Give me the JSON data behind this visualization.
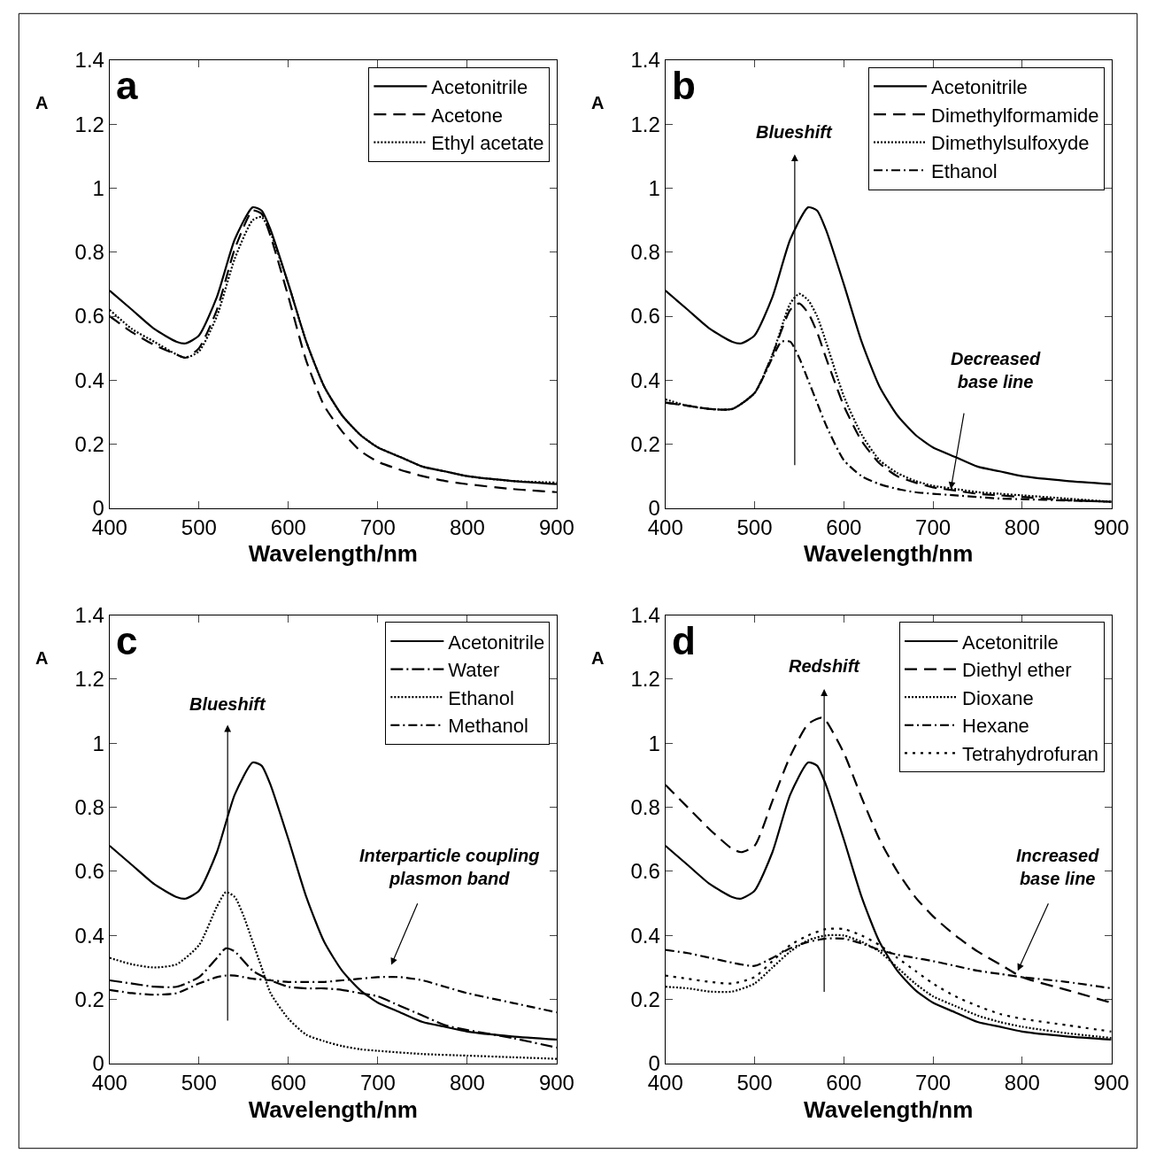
{
  "chart_data": [
    {
      "type": "line",
      "title": "a",
      "xlabel": "Wavelength/nm",
      "ylabel": "A",
      "xlim": [
        400,
        900
      ],
      "ylim": [
        0,
        1.4
      ],
      "xticks": [
        400,
        500,
        600,
        700,
        800,
        900
      ],
      "yticks": [
        0,
        0.2,
        0.4,
        0.6,
        0.8,
        1,
        1.2,
        1.4
      ],
      "legend": "top right",
      "series": [
        {
          "name": "Acetonitrile",
          "color": "#000000",
          "line_style": "solid",
          "x": [
            400,
            425,
            450,
            475,
            485,
            500,
            520,
            540,
            560,
            570,
            580,
            600,
            620,
            640,
            660,
            680,
            700,
            725,
            750,
            775,
            800,
            850,
            900
          ],
          "values": [
            0.68,
            0.62,
            0.56,
            0.52,
            0.515,
            0.54,
            0.66,
            0.84,
            0.94,
            0.93,
            0.87,
            0.7,
            0.52,
            0.38,
            0.29,
            0.23,
            0.19,
            0.16,
            0.13,
            0.115,
            0.1,
            0.085,
            0.075
          ]
        },
        {
          "name": "Acetone",
          "color": "#000000",
          "line_style": "dashed",
          "x": [
            400,
            425,
            450,
            475,
            485,
            500,
            520,
            540,
            560,
            570,
            580,
            600,
            620,
            640,
            660,
            680,
            700,
            725,
            750,
            775,
            800,
            850,
            900
          ],
          "values": [
            0.6,
            0.55,
            0.51,
            0.48,
            0.47,
            0.5,
            0.62,
            0.81,
            0.93,
            0.92,
            0.85,
            0.66,
            0.46,
            0.32,
            0.24,
            0.18,
            0.145,
            0.12,
            0.1,
            0.085,
            0.075,
            0.06,
            0.05
          ]
        },
        {
          "name": "Ethyl acetate",
          "color": "#000000",
          "line_style": "dotted",
          "x": [
            400,
            425,
            450,
            475,
            485,
            500,
            520,
            540,
            560,
            570,
            580,
            600,
            620,
            640,
            660,
            680,
            700,
            725,
            750,
            775,
            800,
            850,
            900
          ],
          "values": [
            0.62,
            0.56,
            0.52,
            0.48,
            0.47,
            0.49,
            0.6,
            0.78,
            0.9,
            0.91,
            0.86,
            0.7,
            0.52,
            0.38,
            0.29,
            0.23,
            0.19,
            0.16,
            0.13,
            0.115,
            0.1,
            0.085,
            0.08
          ]
        }
      ]
    },
    {
      "type": "line",
      "title": "b",
      "xlabel": "Wavelength/nm",
      "ylabel": "A",
      "xlim": [
        400,
        900
      ],
      "ylim": [
        0,
        1.4
      ],
      "xticks": [
        400,
        500,
        600,
        700,
        800,
        900
      ],
      "yticks": [
        0,
        0.2,
        0.4,
        0.6,
        0.8,
        1,
        1.2,
        1.4
      ],
      "legend": "top right",
      "annotations": [
        "Blueshift",
        {
          "text": "Decreased\nbase line",
          "x": 720,
          "y": 0.06
        }
      ],
      "series": [
        {
          "name": "Acetonitrile",
          "color": "#000000",
          "line_style": "solid",
          "x": [
            400,
            425,
            450,
            475,
            485,
            500,
            520,
            540,
            560,
            570,
            580,
            600,
            620,
            640,
            660,
            680,
            700,
            725,
            750,
            775,
            800,
            850,
            900
          ],
          "values": [
            0.68,
            0.62,
            0.56,
            0.52,
            0.515,
            0.54,
            0.66,
            0.84,
            0.94,
            0.93,
            0.87,
            0.7,
            0.52,
            0.38,
            0.29,
            0.23,
            0.19,
            0.16,
            0.13,
            0.115,
            0.1,
            0.085,
            0.075
          ]
        },
        {
          "name": "Dimethylformamide",
          "color": "#000000",
          "line_style": "dashed",
          "x": [
            400,
            425,
            450,
            475,
            500,
            520,
            540,
            550,
            560,
            570,
            580,
            600,
            620,
            640,
            660,
            680,
            700,
            725,
            750,
            775,
            800,
            850,
            900
          ],
          "values": [
            0.33,
            0.32,
            0.31,
            0.31,
            0.36,
            0.48,
            0.62,
            0.64,
            0.61,
            0.55,
            0.47,
            0.32,
            0.21,
            0.14,
            0.1,
            0.08,
            0.065,
            0.055,
            0.045,
            0.04,
            0.035,
            0.025,
            0.02
          ]
        },
        {
          "name": "Dimethylsulfoxyde",
          "color": "#000000",
          "line_style": "dotted",
          "x": [
            400,
            425,
            450,
            475,
            500,
            520,
            540,
            550,
            560,
            570,
            580,
            600,
            620,
            640,
            660,
            680,
            700,
            725,
            750,
            775,
            800,
            850,
            900
          ],
          "values": [
            0.34,
            0.32,
            0.31,
            0.31,
            0.36,
            0.48,
            0.64,
            0.67,
            0.65,
            0.6,
            0.52,
            0.35,
            0.23,
            0.15,
            0.11,
            0.085,
            0.07,
            0.06,
            0.05,
            0.045,
            0.04,
            0.03,
            0.02
          ]
        },
        {
          "name": "Ethanol",
          "color": "#000000",
          "line_style": "dashdot",
          "x": [
            400,
            425,
            450,
            475,
            500,
            520,
            530,
            540,
            550,
            560,
            570,
            580,
            600,
            620,
            640,
            660,
            680,
            700,
            725,
            750,
            775,
            800,
            850,
            900
          ],
          "values": [
            0.33,
            0.32,
            0.31,
            0.31,
            0.36,
            0.47,
            0.52,
            0.52,
            0.47,
            0.4,
            0.33,
            0.26,
            0.15,
            0.1,
            0.075,
            0.06,
            0.05,
            0.045,
            0.04,
            0.035,
            0.03,
            0.028,
            0.024,
            0.02
          ]
        }
      ]
    },
    {
      "type": "line",
      "title": "c",
      "xlabel": "Wavelength/nm",
      "ylabel": "A",
      "xlim": [
        400,
        900
      ],
      "ylim": [
        0,
        1.4
      ],
      "xticks": [
        400,
        500,
        600,
        700,
        800,
        900
      ],
      "yticks": [
        0,
        0.2,
        0.4,
        0.6,
        0.8,
        1,
        1.2,
        1.4
      ],
      "legend": "top right",
      "annotations": [
        "Blueshift",
        "Interparticle coupling\nplasmon band"
      ],
      "series": [
        {
          "name": "Acetonitrile",
          "color": "#000000",
          "line_style": "solid",
          "x": [
            400,
            425,
            450,
            475,
            485,
            500,
            520,
            540,
            560,
            570,
            580,
            600,
            620,
            640,
            660,
            680,
            700,
            725,
            750,
            775,
            800,
            850,
            900
          ],
          "values": [
            0.68,
            0.62,
            0.56,
            0.52,
            0.515,
            0.54,
            0.66,
            0.84,
            0.94,
            0.93,
            0.87,
            0.7,
            0.52,
            0.38,
            0.29,
            0.23,
            0.19,
            0.16,
            0.13,
            0.115,
            0.1,
            0.085,
            0.075
          ]
        },
        {
          "name": "Water",
          "color": "#000000",
          "line_style": "longdashdot",
          "x": [
            400,
            425,
            450,
            475,
            500,
            520,
            530,
            540,
            550,
            560,
            580,
            600,
            620,
            640,
            660,
            680,
            700,
            725,
            750,
            775,
            800,
            850,
            900
          ],
          "values": [
            0.26,
            0.25,
            0.24,
            0.24,
            0.27,
            0.33,
            0.36,
            0.35,
            0.32,
            0.29,
            0.26,
            0.24,
            0.235,
            0.235,
            0.23,
            0.22,
            0.21,
            0.18,
            0.15,
            0.12,
            0.105,
            0.08,
            0.05
          ]
        },
        {
          "name": "Ethanol",
          "color": "#000000",
          "line_style": "dotted",
          "x": [
            400,
            425,
            450,
            475,
            500,
            520,
            530,
            540,
            550,
            560,
            570,
            580,
            600,
            620,
            640,
            660,
            680,
            700,
            750,
            800,
            850,
            900
          ],
          "values": [
            0.33,
            0.31,
            0.3,
            0.31,
            0.37,
            0.49,
            0.535,
            0.52,
            0.46,
            0.38,
            0.3,
            0.22,
            0.14,
            0.09,
            0.07,
            0.055,
            0.045,
            0.04,
            0.03,
            0.025,
            0.02,
            0.015
          ]
        },
        {
          "name": "Methanol",
          "color": "#000000",
          "line_style": "dashdot",
          "x": [
            400,
            425,
            450,
            475,
            500,
            520,
            530,
            540,
            550,
            560,
            580,
            600,
            620,
            640,
            660,
            680,
            700,
            725,
            750,
            775,
            800,
            850,
            900
          ],
          "values": [
            0.23,
            0.22,
            0.215,
            0.22,
            0.25,
            0.27,
            0.275,
            0.275,
            0.27,
            0.265,
            0.26,
            0.255,
            0.255,
            0.255,
            0.26,
            0.265,
            0.27,
            0.27,
            0.26,
            0.24,
            0.22,
            0.19,
            0.16
          ]
        }
      ]
    },
    {
      "type": "line",
      "title": "d",
      "xlabel": "Wavelength/nm",
      "ylabel": "A",
      "xlim": [
        400,
        900
      ],
      "ylim": [
        0,
        1.4
      ],
      "xticks": [
        400,
        500,
        600,
        700,
        800,
        900
      ],
      "yticks": [
        0,
        0.2,
        0.4,
        0.6,
        0.8,
        1,
        1.2,
        1.4
      ],
      "legend": "top right",
      "annotations": [
        "Redshift",
        {
          "text": "Increased\nbase line",
          "x": 795,
          "y": 0.29
        }
      ],
      "series": [
        {
          "name": "Acetonitrile",
          "color": "#000000",
          "line_style": "solid",
          "x": [
            400,
            425,
            450,
            475,
            485,
            500,
            520,
            540,
            560,
            570,
            580,
            600,
            620,
            640,
            660,
            680,
            700,
            725,
            750,
            775,
            800,
            850,
            900
          ],
          "values": [
            0.68,
            0.62,
            0.56,
            0.52,
            0.515,
            0.54,
            0.66,
            0.84,
            0.94,
            0.93,
            0.87,
            0.7,
            0.52,
            0.38,
            0.29,
            0.23,
            0.19,
            0.16,
            0.13,
            0.115,
            0.1,
            0.085,
            0.075
          ]
        },
        {
          "name": "Diethyl ether",
          "color": "#000000",
          "line_style": "dashed",
          "x": [
            400,
            425,
            450,
            475,
            485,
            500,
            520,
            540,
            560,
            575,
            580,
            600,
            620,
            640,
            660,
            680,
            700,
            725,
            750,
            775,
            800,
            850,
            900
          ],
          "values": [
            0.87,
            0.8,
            0.73,
            0.67,
            0.66,
            0.68,
            0.82,
            0.96,
            1.06,
            1.08,
            1.07,
            0.97,
            0.83,
            0.7,
            0.6,
            0.52,
            0.46,
            0.4,
            0.35,
            0.31,
            0.27,
            0.23,
            0.19
          ]
        },
        {
          "name": "Dioxane",
          "color": "#000000",
          "line_style": "dotted",
          "x": [
            400,
            425,
            450,
            475,
            500,
            520,
            540,
            560,
            580,
            600,
            620,
            640,
            660,
            680,
            700,
            725,
            750,
            775,
            800,
            850,
            900
          ],
          "values": [
            0.24,
            0.235,
            0.225,
            0.225,
            0.25,
            0.3,
            0.35,
            0.385,
            0.4,
            0.4,
            0.38,
            0.35,
            0.3,
            0.25,
            0.21,
            0.18,
            0.15,
            0.13,
            0.115,
            0.095,
            0.08
          ]
        },
        {
          "name": "Hexane",
          "color": "#000000",
          "line_style": "dashdot",
          "x": [
            400,
            425,
            450,
            475,
            500,
            520,
            540,
            560,
            580,
            600,
            620,
            640,
            660,
            680,
            700,
            725,
            750,
            775,
            800,
            850,
            900
          ],
          "values": [
            0.355,
            0.345,
            0.33,
            0.315,
            0.305,
            0.33,
            0.36,
            0.38,
            0.39,
            0.39,
            0.375,
            0.355,
            0.34,
            0.33,
            0.32,
            0.305,
            0.29,
            0.28,
            0.27,
            0.255,
            0.235
          ]
        },
        {
          "name": "Tetrahydrofuran",
          "color": "#000000",
          "line_style": "sparse_dotted",
          "x": [
            400,
            425,
            450,
            475,
            500,
            520,
            540,
            560,
            580,
            600,
            620,
            640,
            660,
            680,
            700,
            725,
            750,
            775,
            800,
            850,
            900
          ],
          "values": [
            0.275,
            0.265,
            0.255,
            0.25,
            0.27,
            0.32,
            0.37,
            0.4,
            0.42,
            0.42,
            0.4,
            0.37,
            0.33,
            0.29,
            0.25,
            0.21,
            0.18,
            0.155,
            0.14,
            0.12,
            0.1
          ]
        }
      ]
    }
  ]
}
